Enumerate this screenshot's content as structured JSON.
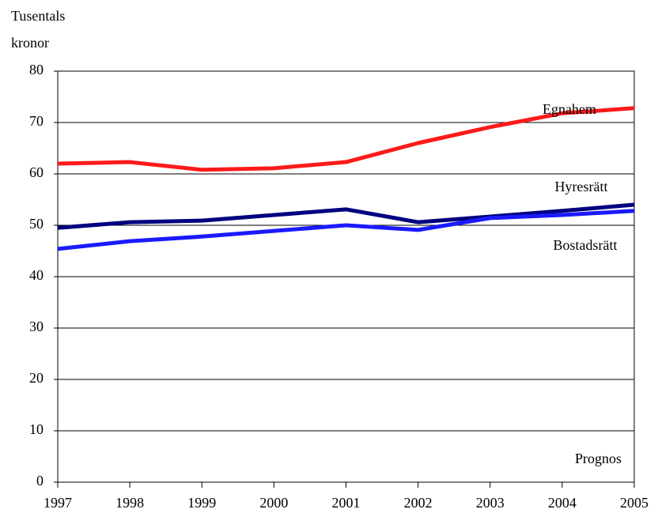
{
  "chart_data": {
    "type": "line",
    "y_label": [
      "Tusentals",
      "kronor"
    ],
    "annotation": "Prognos",
    "x": [
      1997,
      1998,
      1999,
      2000,
      2001,
      2002,
      2003,
      2004,
      2005
    ],
    "xlim": [
      1997,
      2005
    ],
    "xticks": [
      1997,
      1998,
      1999,
      2000,
      2001,
      2002,
      2003,
      2004,
      2005
    ],
    "ylim": [
      0,
      80
    ],
    "yticks": [
      0,
      10,
      20,
      30,
      40,
      50,
      60,
      70,
      80
    ],
    "grid": true,
    "series": [
      {
        "name": "Egnahem",
        "color": "#ff1a1a",
        "values": [
          62.0,
          62.3,
          60.8,
          61.1,
          62.3,
          66.0,
          69.1,
          71.8,
          72.8
        ]
      },
      {
        "name": "Hyresrätt",
        "color": "#000080",
        "values": [
          49.5,
          50.6,
          50.9,
          52.0,
          53.1,
          50.6,
          51.7,
          52.8,
          54.0
        ]
      },
      {
        "name": "Bostadsrätt",
        "color": "#1a1aff",
        "values": [
          45.4,
          46.9,
          47.8,
          48.9,
          50.0,
          49.1,
          51.4,
          52.0,
          52.8
        ]
      }
    ]
  }
}
